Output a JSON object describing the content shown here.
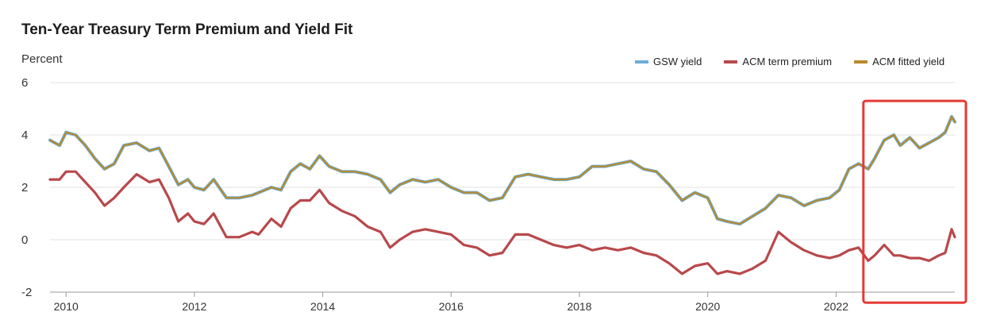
{
  "chart_data": {
    "type": "line",
    "title": "Ten-Year Treasury Term Premium and Yield Fit",
    "ylabel": "Percent",
    "xlabel": "",
    "ylim": [
      -2,
      6
    ],
    "xlim": [
      2009.75,
      2023.85
    ],
    "yticks": [
      6,
      4,
      2,
      0,
      -2
    ],
    "xticks": [
      2010,
      2012,
      2014,
      2016,
      2018,
      2020,
      2022
    ],
    "series": [
      {
        "name": "GSW yield",
        "color": "#6badd6",
        "x": [
          2009.75,
          2009.9,
          2010.0,
          2010.15,
          2010.3,
          2010.45,
          2010.6,
          2010.75,
          2010.9,
          2011.1,
          2011.3,
          2011.45,
          2011.6,
          2011.75,
          2011.9,
          2012.0,
          2012.15,
          2012.3,
          2012.5,
          2012.7,
          2012.9,
          2013.0,
          2013.2,
          2013.35,
          2013.5,
          2013.65,
          2013.8,
          2013.95,
          2014.1,
          2014.3,
          2014.5,
          2014.7,
          2014.9,
          2015.05,
          2015.2,
          2015.4,
          2015.6,
          2015.8,
          2016.0,
          2016.2,
          2016.4,
          2016.6,
          2016.8,
          2017.0,
          2017.2,
          2017.4,
          2017.6,
          2017.8,
          2018.0,
          2018.2,
          2018.4,
          2018.6,
          2018.8,
          2019.0,
          2019.2,
          2019.4,
          2019.6,
          2019.8,
          2020.0,
          2020.15,
          2020.3,
          2020.5,
          2020.7,
          2020.9,
          2021.1,
          2021.3,
          2021.5,
          2021.7,
          2021.9,
          2022.05,
          2022.2,
          2022.35,
          2022.5,
          2022.6,
          2022.75,
          2022.9,
          2023.0,
          2023.15,
          2023.3,
          2023.45,
          2023.6,
          2023.7,
          2023.8,
          2023.85
        ],
        "values": [
          3.8,
          3.6,
          4.1,
          4.0,
          3.6,
          3.1,
          2.7,
          2.9,
          3.6,
          3.7,
          3.4,
          3.5,
          2.8,
          2.1,
          2.3,
          2.0,
          1.9,
          2.3,
          1.6,
          1.6,
          1.7,
          1.8,
          2.0,
          1.9,
          2.6,
          2.9,
          2.7,
          3.2,
          2.8,
          2.6,
          2.6,
          2.5,
          2.3,
          1.8,
          2.1,
          2.3,
          2.2,
          2.3,
          2.0,
          1.8,
          1.8,
          1.5,
          1.6,
          2.4,
          2.5,
          2.4,
          2.3,
          2.3,
          2.4,
          2.8,
          2.8,
          2.9,
          3.0,
          2.7,
          2.6,
          2.1,
          1.5,
          1.8,
          1.6,
          0.8,
          0.7,
          0.6,
          0.9,
          1.2,
          1.7,
          1.6,
          1.3,
          1.5,
          1.6,
          1.9,
          2.7,
          2.9,
          2.7,
          3.1,
          3.8,
          4.0,
          3.6,
          3.9,
          3.5,
          3.7,
          3.9,
          4.1,
          4.7,
          4.5
        ]
      },
      {
        "name": "ACM term premium",
        "color": "#b8484b",
        "x": [
          2009.75,
          2009.9,
          2010.0,
          2010.15,
          2010.3,
          2010.45,
          2010.6,
          2010.75,
          2010.9,
          2011.1,
          2011.3,
          2011.45,
          2011.6,
          2011.75,
          2011.9,
          2012.0,
          2012.15,
          2012.3,
          2012.5,
          2012.7,
          2012.9,
          2013.0,
          2013.2,
          2013.35,
          2013.5,
          2013.65,
          2013.8,
          2013.95,
          2014.1,
          2014.3,
          2014.5,
          2014.7,
          2014.9,
          2015.05,
          2015.2,
          2015.4,
          2015.6,
          2015.8,
          2016.0,
          2016.2,
          2016.4,
          2016.6,
          2016.8,
          2017.0,
          2017.2,
          2017.4,
          2017.6,
          2017.8,
          2018.0,
          2018.2,
          2018.4,
          2018.6,
          2018.8,
          2019.0,
          2019.2,
          2019.4,
          2019.6,
          2019.8,
          2020.0,
          2020.15,
          2020.3,
          2020.5,
          2020.7,
          2020.9,
          2021.1,
          2021.3,
          2021.5,
          2021.7,
          2021.9,
          2022.05,
          2022.2,
          2022.35,
          2022.5,
          2022.6,
          2022.75,
          2022.9,
          2023.0,
          2023.15,
          2023.3,
          2023.45,
          2023.6,
          2023.7,
          2023.8,
          2023.85
        ],
        "values": [
          2.3,
          2.3,
          2.6,
          2.6,
          2.2,
          1.8,
          1.3,
          1.6,
          2.0,
          2.5,
          2.2,
          2.3,
          1.6,
          0.7,
          1.0,
          0.7,
          0.6,
          1.0,
          0.1,
          0.1,
          0.3,
          0.2,
          0.8,
          0.5,
          1.2,
          1.5,
          1.5,
          1.9,
          1.4,
          1.1,
          0.9,
          0.5,
          0.3,
          -0.3,
          0.0,
          0.3,
          0.4,
          0.3,
          0.2,
          -0.2,
          -0.3,
          -0.6,
          -0.5,
          0.2,
          0.2,
          0.0,
          -0.2,
          -0.3,
          -0.2,
          -0.4,
          -0.3,
          -0.4,
          -0.3,
          -0.5,
          -0.6,
          -0.9,
          -1.3,
          -1.0,
          -0.9,
          -1.3,
          -1.2,
          -1.3,
          -1.1,
          -0.8,
          0.3,
          -0.1,
          -0.4,
          -0.6,
          -0.7,
          -0.6,
          -0.4,
          -0.3,
          -0.8,
          -0.6,
          -0.2,
          -0.6,
          -0.6,
          -0.7,
          -0.7,
          -0.8,
          -0.6,
          -0.5,
          0.4,
          0.1
        ]
      },
      {
        "name": "ACM fitted yield",
        "color": "#b78a2e",
        "x": [
          2009.75,
          2009.9,
          2010.0,
          2010.15,
          2010.3,
          2010.45,
          2010.6,
          2010.75,
          2010.9,
          2011.1,
          2011.3,
          2011.45,
          2011.6,
          2011.75,
          2011.9,
          2012.0,
          2012.15,
          2012.3,
          2012.5,
          2012.7,
          2012.9,
          2013.0,
          2013.2,
          2013.35,
          2013.5,
          2013.65,
          2013.8,
          2013.95,
          2014.1,
          2014.3,
          2014.5,
          2014.7,
          2014.9,
          2015.05,
          2015.2,
          2015.4,
          2015.6,
          2015.8,
          2016.0,
          2016.2,
          2016.4,
          2016.6,
          2016.8,
          2017.0,
          2017.2,
          2017.4,
          2017.6,
          2017.8,
          2018.0,
          2018.2,
          2018.4,
          2018.6,
          2018.8,
          2019.0,
          2019.2,
          2019.4,
          2019.6,
          2019.8,
          2020.0,
          2020.15,
          2020.3,
          2020.5,
          2020.7,
          2020.9,
          2021.1,
          2021.3,
          2021.5,
          2021.7,
          2021.9,
          2022.05,
          2022.2,
          2022.35,
          2022.5,
          2022.6,
          2022.75,
          2022.9,
          2023.0,
          2023.15,
          2023.3,
          2023.45,
          2023.6,
          2023.7,
          2023.8,
          2023.85
        ],
        "values": [
          3.8,
          3.6,
          4.1,
          4.0,
          3.6,
          3.1,
          2.7,
          2.9,
          3.6,
          3.7,
          3.4,
          3.5,
          2.8,
          2.1,
          2.3,
          2.0,
          1.9,
          2.3,
          1.6,
          1.6,
          1.7,
          1.8,
          2.0,
          1.9,
          2.6,
          2.9,
          2.7,
          3.2,
          2.8,
          2.6,
          2.6,
          2.5,
          2.3,
          1.8,
          2.1,
          2.3,
          2.2,
          2.3,
          2.0,
          1.8,
          1.8,
          1.5,
          1.6,
          2.4,
          2.5,
          2.4,
          2.3,
          2.3,
          2.4,
          2.8,
          2.8,
          2.9,
          3.0,
          2.7,
          2.6,
          2.1,
          1.5,
          1.8,
          1.6,
          0.8,
          0.7,
          0.6,
          0.9,
          1.2,
          1.7,
          1.6,
          1.3,
          1.5,
          1.6,
          1.9,
          2.7,
          2.9,
          2.7,
          3.1,
          3.8,
          4.0,
          3.6,
          3.9,
          3.5,
          3.7,
          3.9,
          4.1,
          4.7,
          4.5
        ]
      }
    ],
    "annotations": [
      {
        "type": "highlight-box",
        "color": "#e53935",
        "x_range": [
          2022.45,
          2023.85
        ],
        "y_range": [
          -2.4,
          5.3
        ]
      }
    ]
  }
}
